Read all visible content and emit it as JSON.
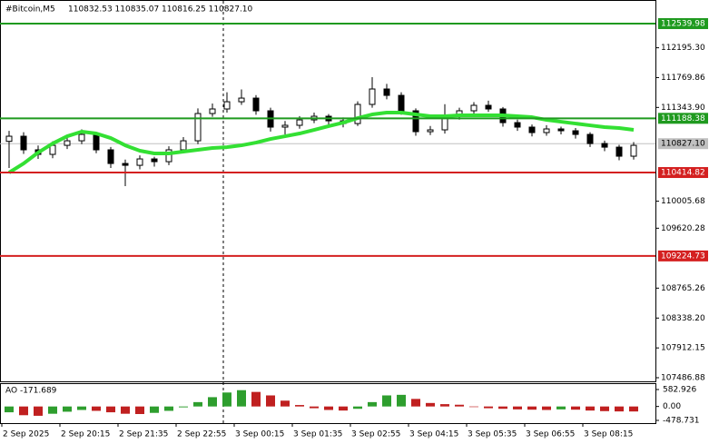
{
  "chart_data": {
    "type": "candlestick",
    "title": "#Bitcoin,M5",
    "quote": "110832.53 110835.07 110816.25 110827.10",
    "x": [
      2,
      6,
      10,
      14,
      18,
      22,
      26,
      30,
      34,
      38,
      42,
      46,
      50,
      54,
      58,
      62,
      66,
      70,
      74,
      78,
      82,
      86,
      90,
      94,
      98,
      102,
      106,
      110,
      114,
      118,
      122,
      126,
      130,
      134,
      138,
      142,
      146,
      150,
      154,
      158,
      162,
      166,
      170,
      174
    ],
    "open": [
      110860,
      110933,
      110739,
      110674,
      110803,
      110868,
      110959,
      110739,
      110544,
      110518,
      110609,
      110570,
      110739,
      110868,
      111257,
      111322,
      111425,
      111477,
      111296,
      111063,
      111089,
      111166,
      111218,
      111153,
      111114,
      111387,
      111607,
      111516,
      111296,
      110998,
      111024,
      111218,
      111296,
      111374,
      111322,
      111127,
      111063,
      110985,
      111037,
      111011,
      110959,
      110829,
      110777,
      110648
    ],
    "high": [
      111010,
      110990,
      110800,
      110860,
      110930,
      111030,
      110990,
      110780,
      110600,
      110660,
      110640,
      110790,
      110920,
      111330,
      111400,
      111560,
      111600,
      111520,
      111340,
      111150,
      111220,
      111270,
      111250,
      111200,
      111430,
      111775,
      111680,
      111560,
      111330,
      111080,
      111390,
      111340,
      111420,
      111440,
      111350,
      111170,
      111100,
      111090,
      111070,
      111050,
      110990,
      110870,
      110810,
      110850
    ],
    "low": [
      110480,
      110680,
      110610,
      110620,
      110750,
      110820,
      110690,
      110480,
      110220,
      110460,
      110500,
      110520,
      110690,
      110820,
      111210,
      111270,
      111380,
      111240,
      111000,
      110960,
      111040,
      111120,
      111100,
      111060,
      111080,
      111340,
      111460,
      111240,
      110940,
      110950,
      110970,
      111170,
      111250,
      111280,
      111070,
      111010,
      110930,
      110940,
      110960,
      110900,
      110780,
      110720,
      110590,
      110600
    ],
    "close": [
      110933,
      110739,
      110674,
      110803,
      110868,
      110959,
      110739,
      110544,
      110518,
      110609,
      110570,
      110739,
      110868,
      111257,
      111322,
      111425,
      111477,
      111296,
      111063,
      111089,
      111166,
      111218,
      111153,
      111114,
      111387,
      111607,
      111516,
      111296,
      110998,
      111024,
      111218,
      111296,
      111374,
      111322,
      111127,
      111063,
      110985,
      111037,
      111011,
      110959,
      110829,
      110777,
      110648,
      110803
    ],
    "candle_color": "#000000",
    "ma": {
      "color": "#33e033",
      "values": [
        110415,
        110544,
        110700,
        110829,
        110933,
        110998,
        110972,
        110907,
        110803,
        110726,
        110687,
        110687,
        110713,
        110739,
        110765,
        110777,
        110803,
        110842,
        110894,
        110933,
        110972,
        111024,
        111076,
        111127,
        111192,
        111244,
        111270,
        111270,
        111244,
        111218,
        111218,
        111231,
        111231,
        111231,
        111231,
        111218,
        111205,
        111166,
        111140,
        111114,
        111088,
        111063,
        111050,
        111024
      ]
    },
    "levels": [
      {
        "value": 112539.98,
        "label": "112539.98",
        "color": "#1f9a1f"
      },
      {
        "value": 111188.38,
        "label": "111188.38",
        "color": "#1f9a1f"
      },
      {
        "value": 110414.82,
        "label": "110414.82",
        "color": "#d42020"
      },
      {
        "value": 109224.73,
        "label": "109224.73",
        "color": "#d42020"
      }
    ],
    "current": {
      "value": 110827.1,
      "label": "110827.10",
      "color": "#c0c0c0"
    },
    "vline": 61,
    "xlim": [
      -0.5,
      180
    ],
    "xticks": [
      {
        "value": 0,
        "label": "2 Sep 2025"
      },
      {
        "value": 16,
        "label": "2 Sep 20:15"
      },
      {
        "value": 32,
        "label": "2 Sep 21:35"
      },
      {
        "value": 48,
        "label": "2 Sep 22:55"
      },
      {
        "value": 64,
        "label": "3 Sep 00:15"
      },
      {
        "value": 80,
        "label": "3 Sep 01:35"
      },
      {
        "value": 96,
        "label": "3 Sep 02:55"
      },
      {
        "value": 112,
        "label": "3 Sep 04:15"
      },
      {
        "value": 128,
        "label": "3 Sep 05:35"
      },
      {
        "value": 144,
        "label": "3 Sep 06:55"
      },
      {
        "value": 160,
        "label": "3 Sep 08:15"
      }
    ],
    "ylim": [
      107435,
      112877
    ],
    "yticks": [
      {
        "value": 112195.3,
        "label": "112195.30"
      },
      {
        "value": 111769.86,
        "label": "111769.86"
      },
      {
        "value": 111343.9,
        "label": "111343.90"
      },
      {
        "value": 110005.68,
        "label": "110005.68"
      },
      {
        "value": 109620.28,
        "label": "109620.28"
      },
      {
        "value": 108765.26,
        "label": "108765.26"
      },
      {
        "value": 108338.2,
        "label": "108338.20"
      },
      {
        "value": 107912.15,
        "label": "107912.15"
      },
      {
        "value": 107486.88,
        "label": "107486.88"
      }
    ],
    "ao": {
      "label": "AO -171.689",
      "values": [
        -200,
        -300,
        -320,
        -250,
        -180,
        -120,
        -150,
        -200,
        -250,
        -260,
        -220,
        -150,
        -30,
        150,
        320,
        480,
        560,
        500,
        380,
        200,
        50,
        -60,
        -120,
        -140,
        -80,
        150,
        380,
        400,
        260,
        120,
        80,
        60,
        -20,
        -60,
        -80,
        -100,
        -110,
        -120,
        -100,
        -110,
        -140,
        -160,
        -170,
        -171.689
      ],
      "ylim": [
        -572,
        801
      ],
      "yticks": [
        {
          "value": 582.926,
          "label": "582.926"
        },
        {
          "value": 0,
          "label": "0.00"
        },
        {
          "value": -478.731,
          "label": "-478.731"
        }
      ],
      "up_color": "#2e9e2e",
      "down_color": "#c02020"
    }
  }
}
